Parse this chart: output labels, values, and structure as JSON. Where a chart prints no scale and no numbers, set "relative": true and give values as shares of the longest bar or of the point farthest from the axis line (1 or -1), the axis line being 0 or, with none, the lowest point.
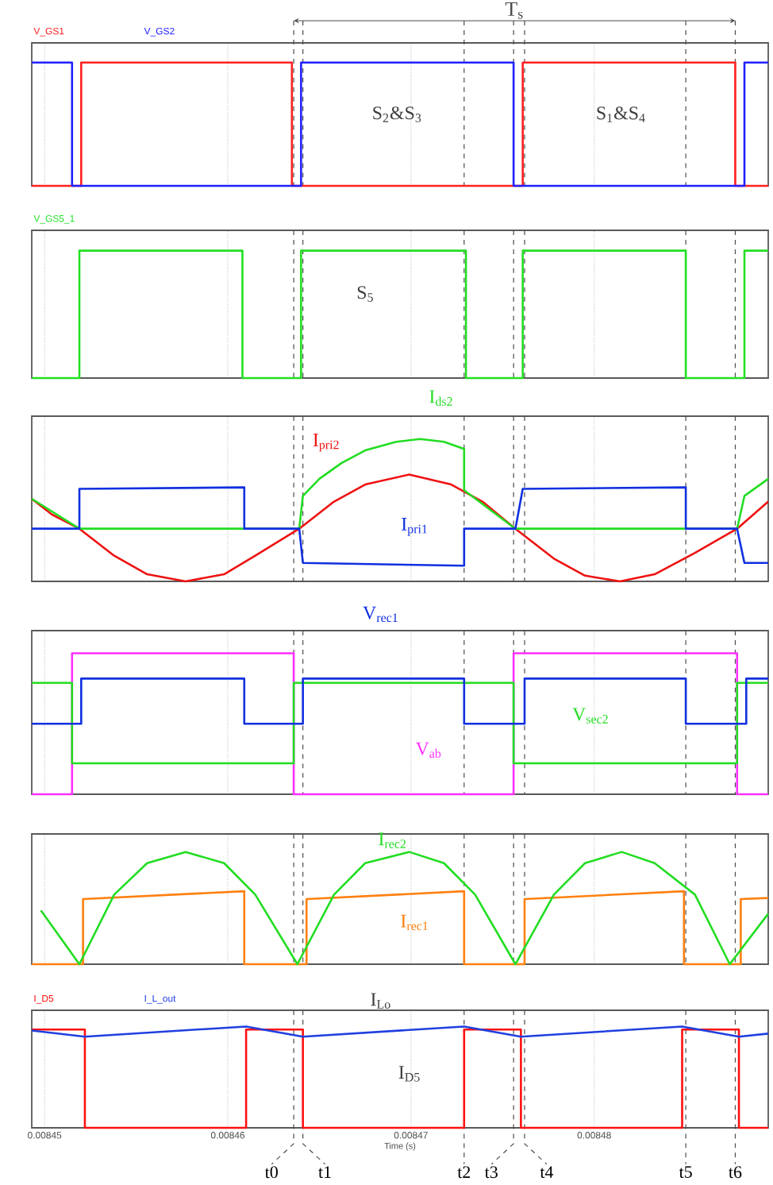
{
  "chart_data": [
    {
      "type": "line",
      "relative": true,
      "xlim": [
        0.0084493,
        0.0084895
      ],
      "xticks": [
        0.00845,
        0.00846,
        0.00847,
        0.00848
      ],
      "tick_labels": false,
      "grid": "x",
      "legend": "top left",
      "annotations": [
        "T$_{s}$",
        "S$_{2}$&S$_{3}$",
        "S$_{1}$&S$_{4}$"
      ],
      "ref_lines": [
        {
          "axis": "x",
          "value": 0.0084636
        },
        {
          "axis": "x",
          "value": 0.0084641
        },
        {
          "axis": "x",
          "value": 0.0084729
        },
        {
          "axis": "x",
          "value": 0.0084756
        },
        {
          "axis": "x",
          "value": 0.0084762
        },
        {
          "axis": "x",
          "value": 0.008485
        },
        {
          "axis": "x",
          "value": 0.0084877
        }
      ],
      "series": [
        {
          "name": "V_GS1",
          "color": "#ff2020",
          "x": [
            0.0084493,
            0.008452,
            0.008452,
            0.0084635,
            0.0084635,
            0.0084761,
            0.0084761,
            0.0084877,
            0.0084877,
            0.0084895
          ],
          "values": [
            0,
            0,
            1,
            1,
            0,
            0,
            1,
            1,
            0,
            0
          ]
        },
        {
          "name": "V_GS2",
          "color": "#2020ff",
          "x": [
            0.0084493,
            0.0084515,
            0.0084515,
            0.008464,
            0.008464,
            0.0084756,
            0.0084756,
            0.0084882,
            0.0084882,
            0.0084895
          ],
          "values": [
            1,
            1,
            0,
            0,
            1,
            1,
            0,
            0,
            1,
            1
          ]
        }
      ]
    },
    {
      "type": "line",
      "relative": true,
      "xlim": [
        0.0084493,
        0.0084895
      ],
      "xticks": [
        0.00845,
        0.00846,
        0.00847,
        0.00848
      ],
      "tick_labels": false,
      "grid": "x",
      "legend": "top left",
      "annotations": [
        "S$_{5}$"
      ],
      "ref_lines": [
        {
          "axis": "x",
          "value": 0.0084636
        },
        {
          "axis": "x",
          "value": 0.0084641
        },
        {
          "axis": "x",
          "value": 0.0084729
        },
        {
          "axis": "x",
          "value": 0.0084756
        },
        {
          "axis": "x",
          "value": 0.0084762
        },
        {
          "axis": "x",
          "value": 0.008485
        },
        {
          "axis": "x",
          "value": 0.0084877
        }
      ],
      "series": [
        {
          "name": "V_GS5_1",
          "color": "#22e022",
          "x": [
            0.0084493,
            0.0084519,
            0.0084519,
            0.0084608,
            0.0084608,
            0.008464,
            0.008464,
            0.008473,
            0.008473,
            0.0084761,
            0.0084761,
            0.008485,
            0.008485,
            0.0084882,
            0.0084882,
            0.0084895
          ],
          "values": [
            0,
            0,
            1,
            1,
            0,
            0,
            1,
            1,
            0,
            0,
            1,
            1,
            0,
            0,
            1,
            1
          ]
        }
      ]
    },
    {
      "type": "line",
      "relative": true,
      "xlim": [
        0.0084493,
        0.0084895
      ],
      "xticks": [
        0.00845,
        0.00846,
        0.00847,
        0.00848
      ],
      "tick_labels": false,
      "grid": "x",
      "ref_lines": [
        {
          "axis": "x",
          "value": 0.0084636
        },
        {
          "axis": "x",
          "value": 0.0084641
        },
        {
          "axis": "x",
          "value": 0.0084729
        },
        {
          "axis": "x",
          "value": 0.0084756
        },
        {
          "axis": "x",
          "value": 0.0084762
        },
        {
          "axis": "x",
          "value": 0.008485
        },
        {
          "axis": "x",
          "value": 0.0084877
        }
      ],
      "series": [
        {
          "name": "I$_{pri2}$",
          "color": "#ee1111",
          "x": [
            0.0084493,
            0.0084504,
            0.0084519,
            0.0084538,
            0.0084556,
            0.0084577,
            0.0084598,
            0.0084615,
            0.0084639,
            0.0084658,
            0.0084675,
            0.0084699,
            0.0084722,
            0.0084739,
            0.0084757,
            0.0084778,
            0.0084795,
            0.0084814,
            0.0084833,
            0.0084855,
            0.0084878,
            0.0084895
          ],
          "values": [
            0.58,
            0.47,
            0.37,
            0.18,
            0.05,
            0,
            0.05,
            0.18,
            0.37,
            0.56,
            0.68,
            0.75,
            0.68,
            0.56,
            0.37,
            0.16,
            0.04,
            0,
            0.05,
            0.2,
            0.37,
            0.56
          ]
        },
        {
          "name": "I$_{ds2}$",
          "color": "#22dd22",
          "x": [
            0.0084493,
            0.0084519,
            0.0084639,
            0.0084641,
            0.008465,
            0.0084662,
            0.0084675,
            0.0084692,
            0.0084705,
            0.0084718,
            0.0084729,
            0.0084729,
            0.0084757,
            0.0084878,
            0.0084882,
            0.0084895
          ],
          "values": [
            0.58,
            0.37,
            0.37,
            0.6,
            0.72,
            0.83,
            0.92,
            0.98,
            1,
            0.98,
            0.93,
            0.64,
            0.37,
            0.37,
            0.6,
            0.72
          ]
        },
        {
          "name": "I$_{pri1}$",
          "color": "#1030e0",
          "x": [
            0.0084493,
            0.0084519,
            0.0084519,
            0.0084609,
            0.0084609,
            0.0084639,
            0.0084641,
            0.0084729,
            0.0084729,
            0.0084757,
            0.0084761,
            0.008485,
            0.008485,
            0.0084878,
            0.0084882,
            0.0084895
          ],
          "values": [
            0.37,
            0.37,
            0.65,
            0.66,
            0.37,
            0.37,
            0.13,
            0.11,
            0.37,
            0.37,
            0.65,
            0.66,
            0.37,
            0.37,
            0.13,
            0.13
          ]
        }
      ]
    },
    {
      "type": "line",
      "relative": true,
      "xlim": [
        0.0084493,
        0.0084895
      ],
      "xticks": [
        0.00845,
        0.00846,
        0.00847,
        0.00848
      ],
      "tick_labels": false,
      "grid": "x",
      "ref_lines": [
        {
          "axis": "x",
          "value": 0.0084636
        },
        {
          "axis": "x",
          "value": 0.0084641
        },
        {
          "axis": "x",
          "value": 0.0084729
        },
        {
          "axis": "x",
          "value": 0.0084756
        },
        {
          "axis": "x",
          "value": 0.0084762
        },
        {
          "axis": "x",
          "value": 0.008485
        },
        {
          "axis": "x",
          "value": 0.0084877
        }
      ],
      "series": [
        {
          "name": "V$_{ab}$",
          "color": "#ff30ff",
          "x": [
            0.0084493,
            0.0084515,
            0.0084515,
            0.0084636,
            0.0084636,
            0.0084756,
            0.0084756,
            0.0084878,
            0.0084878,
            0.0084895
          ],
          "values": [
            0,
            0,
            1,
            1,
            0,
            0,
            1,
            1,
            0,
            0
          ]
        },
        {
          "name": "V$_{sec2}$",
          "color": "#22dd22",
          "x": [
            0.0084493,
            0.0084515,
            0.0084515,
            0.0084636,
            0.0084636,
            0.0084756,
            0.0084756,
            0.0084878,
            0.0084878,
            0.0084895
          ],
          "values": [
            0.79,
            0.79,
            0.22,
            0.22,
            0.79,
            0.79,
            0.22,
            0.22,
            0.79,
            0.79
          ]
        },
        {
          "name": "V$_{rec1}$",
          "color": "#1030e0",
          "x": [
            0.0084493,
            0.008452,
            0.008452,
            0.0084609,
            0.0084609,
            0.0084641,
            0.0084641,
            0.0084729,
            0.0084729,
            0.0084762,
            0.0084762,
            0.008485,
            0.008485,
            0.0084883,
            0.0084883,
            0.0084895
          ],
          "values": [
            0.5,
            0.5,
            0.82,
            0.82,
            0.5,
            0.5,
            0.82,
            0.82,
            0.5,
            0.5,
            0.82,
            0.82,
            0.5,
            0.5,
            0.82,
            0.82
          ]
        }
      ]
    },
    {
      "type": "line",
      "relative": true,
      "xlim": [
        0.0084493,
        0.0084895
      ],
      "xticks": [
        0.00845,
        0.00846,
        0.00847,
        0.00848
      ],
      "tick_labels": false,
      "grid": "x",
      "ref_lines": [
        {
          "axis": "x",
          "value": 0.0084636
        },
        {
          "axis": "x",
          "value": 0.0084641
        },
        {
          "axis": "x",
          "value": 0.0084729
        },
        {
          "axis": "x",
          "value": 0.0084756
        },
        {
          "axis": "x",
          "value": 0.0084762
        },
        {
          "axis": "x",
          "value": 0.008485
        },
        {
          "axis": "x",
          "value": 0.0084877
        }
      ],
      "series": [
        {
          "name": "I$_{rec1}$",
          "color": "#ff8010",
          "x": [
            0.0084493,
            0.0084521,
            0.0084521,
            0.0084609,
            0.0084609,
            0.0084643,
            0.0084643,
            0.0084729,
            0.0084729,
            0.0084762,
            0.0084762,
            0.0084849,
            0.0084849,
            0.008488,
            0.008488,
            0.0084895
          ],
          "values": [
            0,
            0,
            0.58,
            0.65,
            0,
            0,
            0.58,
            0.65,
            0,
            0,
            0.58,
            0.65,
            0,
            0,
            0.58,
            0.59
          ]
        },
        {
          "name": "I$_{rec2}$",
          "color": "#22dd22",
          "x": [
            0.0084498,
            0.0084519,
            0.0084538,
            0.0084556,
            0.0084577,
            0.0084598,
            0.0084615,
            0.0084638,
            0.0084658,
            0.0084675,
            0.0084699,
            0.0084718,
            0.0084735,
            0.0084757,
            0.0084778,
            0.0084795,
            0.0084815,
            0.0084833,
            0.0084855,
            0.0084874,
            0.0084895
          ],
          "values": [
            0.48,
            0,
            0.62,
            0.9,
            1,
            0.9,
            0.62,
            0,
            0.62,
            0.9,
            1,
            0.9,
            0.62,
            0,
            0.62,
            0.9,
            1,
            0.9,
            0.62,
            0,
            0.45
          ]
        }
      ]
    },
    {
      "type": "line",
      "relative": true,
      "xlim": [
        0.0084493,
        0.0084895
      ],
      "xticks": [
        0.00845,
        0.00846,
        0.00847,
        0.00848
      ],
      "tick_labels": "x",
      "grid": "x",
      "xlabel": "Time (s)",
      "annotations": [
        "I$_{Lo}$",
        "I$_{D5}$"
      ],
      "ref_lines": [
        {
          "axis": "x",
          "value": 0.0084636,
          "label": "t0"
        },
        {
          "axis": "x",
          "value": 0.0084641,
          "label": "t1"
        },
        {
          "axis": "x",
          "value": 0.0084729,
          "label": "t2"
        },
        {
          "axis": "x",
          "value": 0.0084756,
          "label": "t3"
        },
        {
          "axis": "x",
          "value": 0.0084762,
          "label": "t4"
        },
        {
          "axis": "x",
          "value": 0.008485,
          "label": "t5"
        },
        {
          "axis": "x",
          "value": 0.0084877,
          "label": "t6"
        }
      ],
      "series": [
        {
          "name": "I_D5",
          "color": "#ff1010",
          "x": [
            0.0084493,
            0.0084522,
            0.0084522,
            0.008461,
            0.008461,
            0.0084641,
            0.0084641,
            0.0084729,
            0.0084729,
            0.008476,
            0.008476,
            0.0084848,
            0.0084848,
            0.0084879,
            0.0084879,
            0.0084895
          ],
          "values": [
            0.97,
            0.97,
            0,
            0,
            0.97,
            0.97,
            0,
            0,
            0.97,
            0.97,
            0,
            0,
            0.97,
            0.97,
            0,
            0
          ]
        },
        {
          "name": "I_L_out",
          "color": "#2040e0",
          "x": [
            0.0084493,
            0.0084522,
            0.008461,
            0.0084641,
            0.0084729,
            0.008476,
            0.0084848,
            0.0084879,
            0.0084895
          ],
          "values": [
            0.96,
            0.9,
            1,
            0.9,
            1,
            0.9,
            1,
            0.9,
            0.93
          ]
        }
      ]
    }
  ]
}
